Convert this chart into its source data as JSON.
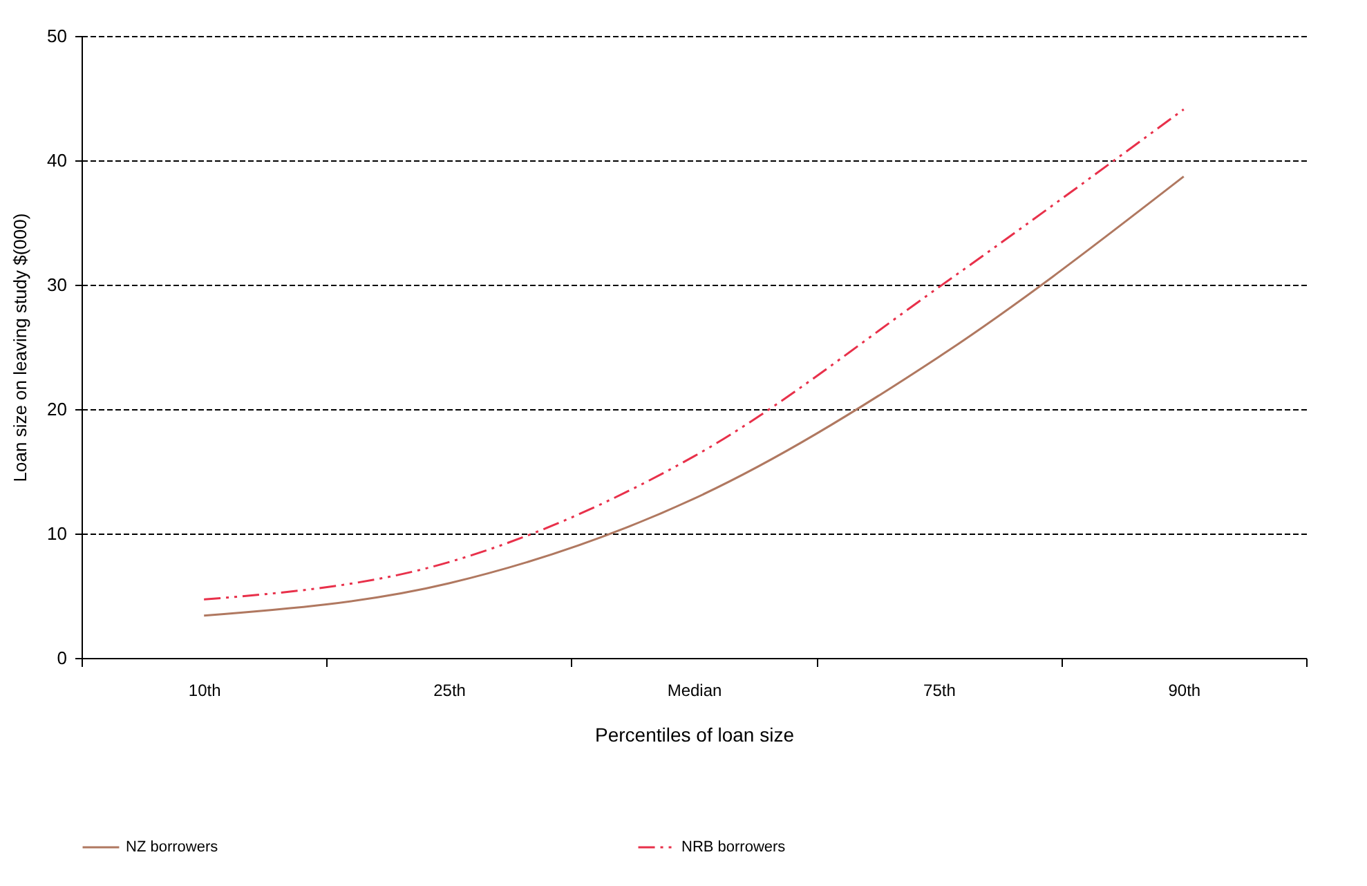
{
  "chart_data": {
    "type": "line",
    "xlabel": "Percentiles of loan size",
    "ylabel": "Loan size on leaving study $(000)",
    "categories": [
      "10th",
      "25th",
      "Median",
      "75th",
      "90th"
    ],
    "series": [
      {
        "name": "NZ borrowers",
        "color": "#b07860",
        "line_style": "solid",
        "values": [
          3.4,
          6.0,
          12.8,
          24.2,
          38.7
        ]
      },
      {
        "name": "NRB borrowers",
        "color": "#e8304a",
        "line_style": "dashed",
        "values": [
          4.7,
          7.7,
          16.2,
          29.8,
          44.1
        ]
      }
    ],
    "ylim": [
      0,
      50
    ],
    "yticks": [
      0,
      10,
      20,
      30,
      40,
      50
    ],
    "grid": "y",
    "legend": "bottom"
  }
}
